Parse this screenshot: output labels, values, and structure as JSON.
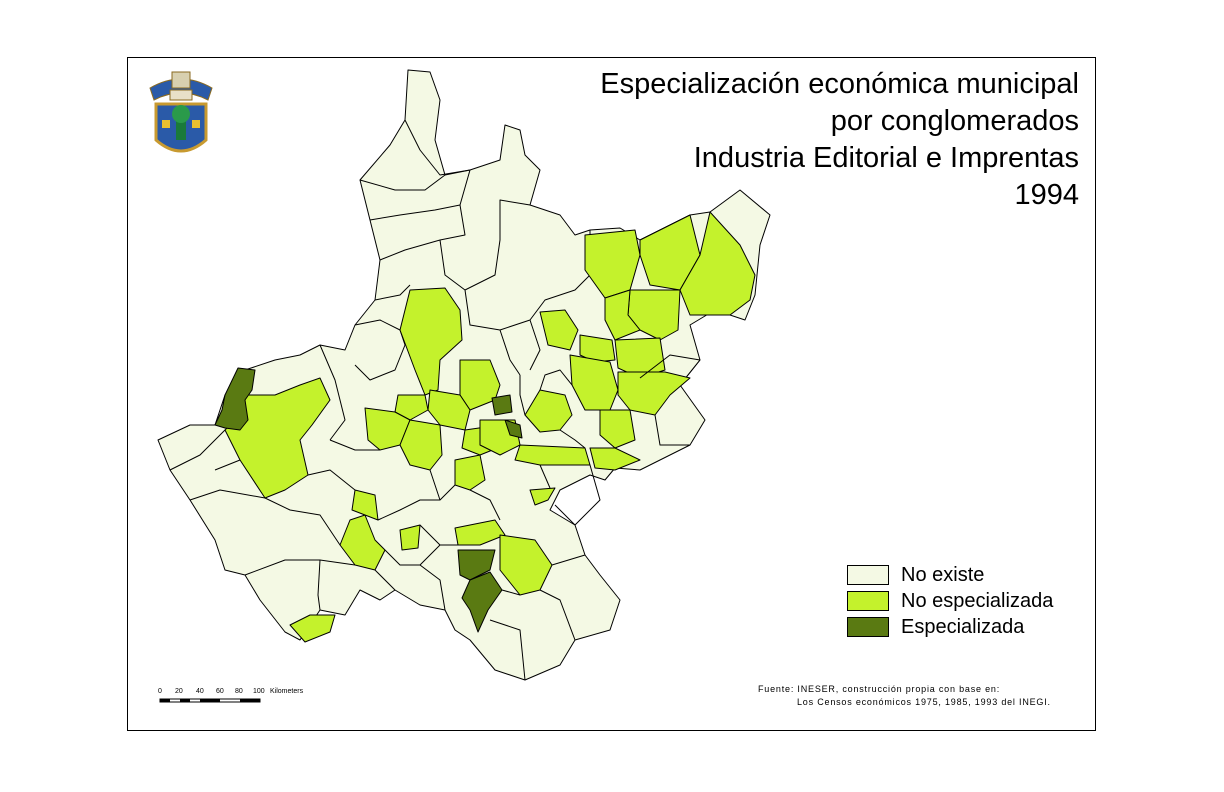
{
  "title": {
    "line1": "Especialización económica municipal",
    "line2": "por conglomerados",
    "line3": "Industria Editorial e Imprentas",
    "line4": "1994"
  },
  "legend": {
    "items": [
      {
        "label": "No existe",
        "color": "#f4f9e4"
      },
      {
        "label": "No especializada",
        "color": "#c4f22c"
      },
      {
        "label": "Especializada",
        "color": "#5a7a12"
      }
    ]
  },
  "scale": {
    "ticks": [
      "0",
      "20",
      "40",
      "60",
      "80",
      "100"
    ],
    "unit": "Kilometers"
  },
  "source": {
    "line1": "Fuente: INESER, construcción propia con base en:",
    "line2": "Los Censos económicos 1975, 1985, 1993 del INEGI."
  },
  "colors": {
    "no_existe": "#f4f9e4",
    "no_especializada": "#c4f22c",
    "especializada": "#5a7a12",
    "border": "#000000"
  },
  "logo_icon": "university-shield-icon"
}
